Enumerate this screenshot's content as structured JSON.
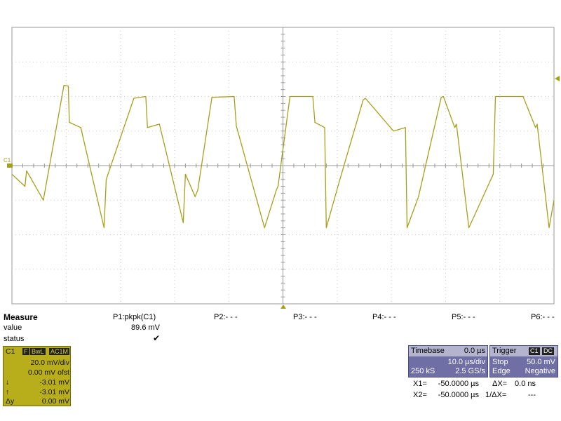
{
  "screen": {
    "trace_color": "#a5a01a",
    "grid_color": "#c8c8c8",
    "offset_marker_color": "#a5a01a"
  },
  "chart_data": {
    "type": "line",
    "title": "",
    "xlabel": "",
    "ylabel": "",
    "grid": true,
    "x_divisions": 10,
    "y_divisions": 8,
    "y_units": "mV",
    "y_per_div": 20.0,
    "x_per_div_us": 10.0,
    "xlim_us": [
      -50,
      50
    ],
    "ylim_mV": [
      -80,
      80
    ],
    "channel_marker": "C1",
    "series": [
      {
        "name": "C1",
        "x_us": [
          -50.0,
          -47.6,
          -47.3,
          -44.2,
          -40.4,
          -39.6,
          -39.4,
          -37.3,
          -33.0,
          -32.6,
          -27.5,
          -25.3,
          -25.0,
          -22.8,
          -18.4,
          -18.0,
          -16.2,
          -15.7,
          -13.1,
          -9.0,
          -8.6,
          -3.4,
          -1.2,
          -0.9,
          1.3,
          5.5,
          5.9,
          7.7,
          8.0,
          10.5,
          14.8,
          15.2,
          20.4,
          22.6,
          22.9,
          25.0,
          29.2,
          29.6,
          31.7,
          32.0,
          34.3,
          38.8,
          39.2,
          44.3,
          46.6,
          46.9,
          49.1,
          50.0
        ],
        "y_mV": [
          -5.0,
          -12.0,
          -3.0,
          -20.0,
          46.5,
          46.0,
          25.0,
          22.0,
          -36.0,
          -8.0,
          39.0,
          40.0,
          22.0,
          24.0,
          -33.0,
          -5.0,
          -18.0,
          -14.0,
          39.5,
          40.0,
          23.0,
          -36.0,
          -14.0,
          -12.0,
          40.0,
          40.0,
          25.0,
          22.0,
          -36.0,
          -8.0,
          38.0,
          39.0,
          20.0,
          22.0,
          -36.0,
          -18.0,
          39.5,
          40.0,
          22.0,
          24.0,
          -36.0,
          -5.0,
          40.0,
          40.0,
          22.0,
          24.0,
          -36.0,
          -20.0
        ]
      }
    ]
  },
  "measure": {
    "title": "Measure",
    "row_value_label": "value",
    "row_status_label": "status",
    "params": [
      {
        "label": "P1:pkpk(C1)",
        "value": "89.6 mV",
        "status": "✔"
      },
      {
        "label": "P2:- - -"
      },
      {
        "label": "P3:- - -"
      },
      {
        "label": "P4:- - -"
      },
      {
        "label": "P5:- - -"
      },
      {
        "label": "P6:- - -"
      }
    ]
  },
  "channel": {
    "name": "C1",
    "tags": [
      "F",
      "BwL",
      "AC1M"
    ],
    "vdiv": "20.0 mV/div",
    "offset": "0.00 mV ofst",
    "cursor1_label": "↓",
    "cursor1_value": "-3.01 mV",
    "cursor2_label": "↑",
    "cursor2_value": "-3.01 mV",
    "delta_label": "Δy",
    "delta_value": "0.00 mV"
  },
  "timebase": {
    "title": "Timebase",
    "delay": "0.0 µs",
    "tdiv": "10.0 µs/div",
    "samples": "250 kS",
    "rate": "2.5 GS/s"
  },
  "trigger": {
    "title": "Trigger",
    "tags": [
      "C1",
      "DC"
    ],
    "mode": "Stop",
    "level": "50.0 mV",
    "type": "Edge",
    "slope": "Negative"
  },
  "cursors": {
    "x1_label": "X1=",
    "x1_value": "-50.0000 µs",
    "dx_label": "ΔX=",
    "dx_value": "0.0 ns",
    "x2_label": "X2=",
    "x2_value": "-50.0000 µs",
    "inv_dx_label": "1/ΔX=",
    "inv_dx_value": "---"
  }
}
